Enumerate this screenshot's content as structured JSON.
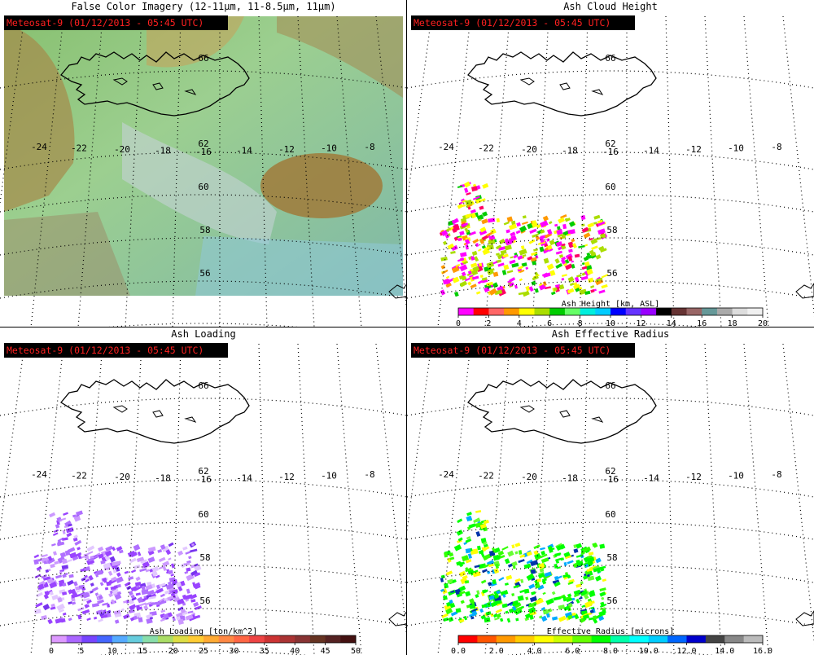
{
  "panels": [
    {
      "title": "False Color Imagery (12-11μm, 11-8.5μm, 11μm)",
      "satellite": "Meteosat-9  (01/12/2013 - 05:45 UTC)"
    },
    {
      "title": "Ash Cloud Height",
      "satellite": "Meteosat-9  (01/12/2013 - 05:45 UTC)",
      "colorbar": {
        "title": "Ash Height [km, ASL]",
        "ticks": [
          "0",
          "2",
          "4",
          "6",
          "8",
          "10",
          "12",
          "14",
          "16",
          "18",
          "20"
        ],
        "colors": [
          "#ff00ff",
          "#ff0000",
          "#ff6666",
          "#ff9900",
          "#ffff00",
          "#aadd00",
          "#00cc00",
          "#66ff66",
          "#00eedd",
          "#00ccff",
          "#0000ff",
          "#6633ff",
          "#9900ff",
          "#000000",
          "#663333",
          "#996666",
          "#669999",
          "#aaaaaa",
          "#dddddd",
          "#f0f0f0"
        ]
      }
    },
    {
      "title": "Ash Loading",
      "satellite": "Meteosat-9  (01/12/2013 - 05:45 UTC)",
      "colorbar": {
        "title": "Ash Loading [ton/km^2]",
        "ticks": [
          "0",
          "5",
          "10",
          "15",
          "20",
          "25",
          "30",
          "35",
          "40",
          "45",
          "50"
        ],
        "colors": [
          "#dd99ff",
          "#aa66ff",
          "#7744ff",
          "#4466ff",
          "#55aaff",
          "#66ccdd",
          "#88ddaa",
          "#aadd66",
          "#dddd44",
          "#ffcc33",
          "#ffaa33",
          "#ff8844",
          "#ff6644",
          "#ee4444",
          "#cc3333",
          "#aa3333",
          "#883333",
          "#663322",
          "#552222",
          "#441111"
        ]
      }
    },
    {
      "title": "Ash Effective Radius",
      "satellite": "Meteosat-9  (01/12/2013 - 05:45 UTC)",
      "colorbar": {
        "title": "Effective Radius [microns]",
        "ticks": [
          "0.0",
          "2.0",
          "4.0",
          "6.0",
          "8.0",
          "10.0",
          "12.0",
          "14.0",
          "16.0"
        ],
        "colors": [
          "#ff0000",
          "#ff5500",
          "#ff9900",
          "#ffcc00",
          "#ffff00",
          "#ccff00",
          "#66ff00",
          "#00ff00",
          "#00ffaa",
          "#00ffff",
          "#00ccff",
          "#0066ff",
          "#0000cc",
          "#444444",
          "#888888",
          "#bbbbbb"
        ]
      }
    }
  ],
  "map": {
    "lon_labels": [
      "-24",
      "-22",
      "-20",
      "-18",
      "-16",
      "-14",
      "-12",
      "-10",
      "-8"
    ],
    "lat_labels": [
      "66",
      "62",
      "60",
      "58",
      "56"
    ]
  }
}
